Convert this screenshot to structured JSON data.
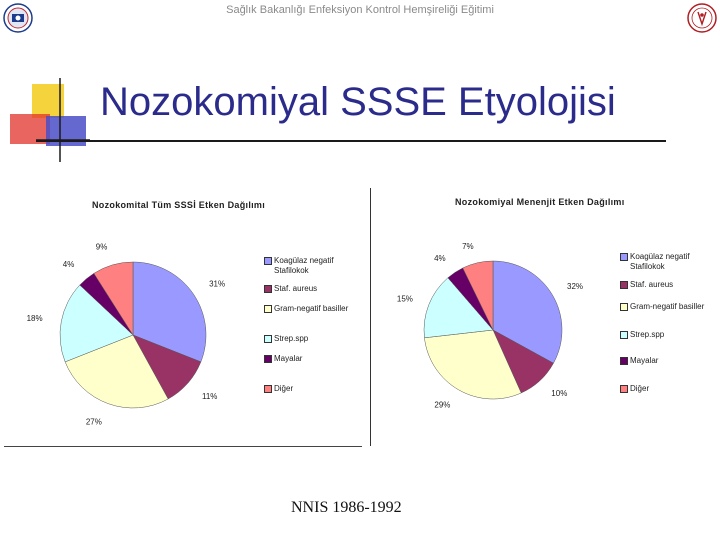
{
  "header": {
    "text": "Sağlık Bakanlığı Enfeksiyon Kontrol Hemşireliği Eğitimi"
  },
  "slide": {
    "title": "Nozokomiyal SSSE Etyolojisi",
    "footer": "NNIS 1986-1992"
  },
  "colors": {
    "title": "#2b2b8c",
    "deco_yellow": "#f5d33d",
    "deco_red": "#e2332b",
    "deco_blue": "#4a4fc7"
  },
  "logos": [
    "ministry-emblem-icon",
    "hospital-seal-icon"
  ],
  "chart_data": [
    {
      "type": "pie",
      "title": "Nozokomital Tüm SSSİ Etken Dağılımı",
      "categories": [
        "Koagülaz negatif Stafilokok",
        "Staf. aureus",
        "Gram-negatif basiller",
        "Strep.spp",
        "Mayalar",
        "Diğer"
      ],
      "values": [
        31,
        11,
        27,
        18,
        4,
        9
      ],
      "labels": [
        "31%",
        "11%",
        "27%",
        "18%",
        "4%",
        "9%"
      ],
      "colors": [
        "#9999ff",
        "#993366",
        "#ffffcc",
        "#ccffff",
        "#660066",
        "#ff8080"
      ],
      "legend": "right"
    },
    {
      "type": "pie",
      "title": "Nozokomiyal Menenjit Etken Dağılımı",
      "categories": [
        "Koagülaz negatif Stafilokok",
        "Staf. aureus",
        "Gram-negatif basiller",
        "Strep.spp",
        "Mayalar",
        "Diğer"
      ],
      "values": [
        32,
        10,
        29,
        15,
        4,
        7
      ],
      "labels": [
        "32%",
        "10%",
        "29%",
        "15%",
        "4%",
        "7%"
      ],
      "colors": [
        "#9999ff",
        "#993366",
        "#ffffcc",
        "#ccffff",
        "#660066",
        "#ff8080"
      ],
      "legend": "right"
    }
  ]
}
